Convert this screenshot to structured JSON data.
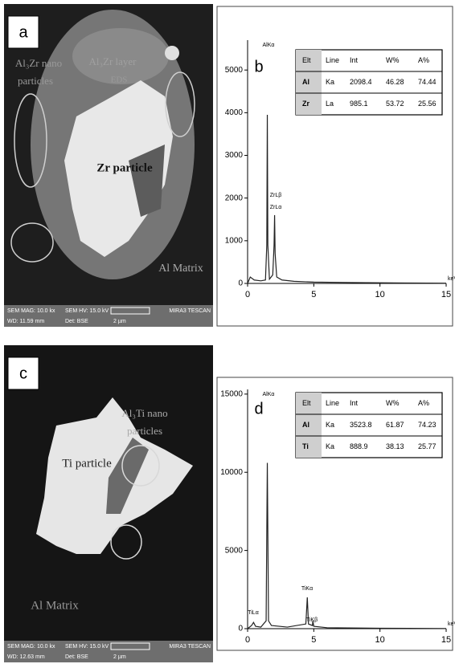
{
  "panels": [
    {
      "label": "a",
      "annotations": [
        "Al₃Zr nano",
        "particles",
        "Al₃Zr layer",
        "EDS",
        "Zr particle",
        "Al Matrix"
      ],
      "info_bar": [
        "SEM MAG: 10.0 kx",
        "SEM HV: 15.0 kV",
        "MIRA3 TESCAN",
        "WD: 11.59 mm",
        "Det: BSE",
        "2 µm"
      ]
    },
    {
      "label": "c",
      "annotations": [
        "Al₃Ti nano",
        "particles",
        "Ti particle",
        "Al Matrix"
      ],
      "info_bar": [
        "SEM MAG: 10.0 kx",
        "SEM HV: 15.0 kV",
        "MIRA3 TESCAN",
        "WD: 12.63 mm",
        "Det: BSE",
        "2 µm"
      ]
    }
  ],
  "chart_data": [
    {
      "type": "line",
      "label": "b",
      "x_label": "keV",
      "x": [
        0,
        0.2,
        0.5,
        1.0,
        1.35,
        1.45,
        1.49,
        1.53,
        1.65,
        1.9,
        2.0,
        2.04,
        2.08,
        2.2,
        2.6,
        3.5,
        5,
        8,
        12,
        15
      ],
      "series": [
        {
          "color": "#222222",
          "values": [
            0,
            150,
            80,
            60,
            80,
            900,
            3950,
            900,
            100,
            200,
            900,
            1600,
            700,
            150,
            80,
            50,
            30,
            20,
            10,
            5
          ]
        }
      ],
      "xlim": [
        0,
        15
      ],
      "xticks": [
        0,
        5,
        10,
        15
      ],
      "ylim": [
        0,
        5700
      ],
      "yticks": [
        0,
        1000,
        2000,
        3000,
        4000,
        5000
      ],
      "annotations": [
        "AlKα",
        "ZrLβ",
        "ZrLα"
      ],
      "table": {
        "header": [
          "Elt",
          "Line",
          "Int",
          "W%",
          "A%"
        ],
        "rows": [
          [
            "Al",
            "Ka",
            "2098.4",
            "46.28",
            "74.44"
          ],
          [
            "Zr",
            "La",
            "985.1",
            "53.72",
            "25.56"
          ]
        ]
      }
    },
    {
      "type": "line",
      "label": "d",
      "x_label": "keV",
      "x": [
        0,
        0.3,
        0.45,
        0.6,
        1.0,
        1.4,
        1.49,
        1.58,
        1.8,
        3,
        4.4,
        4.51,
        4.6,
        4.9,
        4.93,
        5.0,
        6,
        10,
        15
      ],
      "series": [
        {
          "color": "#222222",
          "values": [
            0,
            200,
            400,
            150,
            100,
            500,
            10600,
            500,
            200,
            100,
            300,
            2000,
            300,
            200,
            500,
            150,
            60,
            30,
            10
          ]
        }
      ],
      "xlim": [
        0,
        15
      ],
      "xticks": [
        0,
        5,
        10,
        15
      ],
      "ylim": [
        0,
        15300
      ],
      "yticks": [
        0,
        5000,
        10000,
        15000
      ],
      "annotations": [
        "AlKα",
        "TiLα",
        "TiKα",
        "TiKβ"
      ],
      "table": {
        "header": [
          "Elt",
          "Line",
          "Int",
          "W%",
          "A%"
        ],
        "rows": [
          [
            "Al",
            "Ka",
            "3523.8",
            "61.87",
            "74.23"
          ],
          [
            "Ti",
            "Ka",
            "888.9",
            "38.13",
            "25.77"
          ]
        ]
      }
    }
  ]
}
